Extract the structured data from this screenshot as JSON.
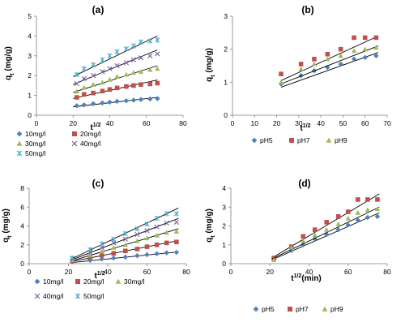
{
  "colors": {
    "blue": "#4F81BD",
    "red": "#C0504D",
    "green": "#9BBB59",
    "purple": "#8064A2",
    "cyan": "#4BACC6",
    "fit_line": "#000000"
  },
  "chart_data": [
    {
      "type": "scatter",
      "panel_label": "(a)",
      "ylabel": "q",
      "ylabel_sub": "t",
      "ylabel_unit": " (mg/g)",
      "xlabel": "t",
      "xlabel_sup": "1/2",
      "xlabel_unit": "",
      "xlim": [
        0,
        80
      ],
      "ylim": [
        0,
        5
      ],
      "xticks": [
        "0",
        "20",
        "40",
        "60",
        "80"
      ],
      "yticks": [
        "0",
        "1",
        "2",
        "3",
        "4",
        "5"
      ],
      "legend_layout": "two-column",
      "series": [
        {
          "name": "10mg/l",
          "marker": "diamond",
          "color": "blue",
          "x": [
            22,
            26,
            31,
            36,
            40,
            44,
            49,
            53,
            57,
            62,
            66
          ],
          "y": [
            0.48,
            0.52,
            0.58,
            0.62,
            0.66,
            0.7,
            0.73,
            0.76,
            0.79,
            0.82,
            0.84
          ],
          "fit": [
            [
              20,
              0.42
            ],
            [
              66,
              0.9
            ]
          ]
        },
        {
          "name": "20mg/l",
          "marker": "square",
          "color": "red",
          "x": [
            22,
            26,
            31,
            36,
            40,
            44,
            49,
            53,
            57,
            62,
            66
          ],
          "y": [
            0.9,
            1.05,
            1.12,
            1.22,
            1.3,
            1.38,
            1.45,
            1.5,
            1.55,
            1.58,
            1.62
          ],
          "fit": [
            [
              20,
              0.85
            ],
            [
              66,
              1.78
            ]
          ]
        },
        {
          "name": "30mg/l",
          "marker": "triangle",
          "color": "green",
          "x": [
            22,
            26,
            31,
            36,
            40,
            44,
            49,
            53,
            57,
            62,
            66
          ],
          "y": [
            1.2,
            1.4,
            1.55,
            1.65,
            1.8,
            1.95,
            2.05,
            2.15,
            2.2,
            2.3,
            2.35
          ],
          "fit": [
            [
              20,
              1.15
            ],
            [
              66,
              2.5
            ]
          ]
        },
        {
          "name": "40mg/l",
          "marker": "x",
          "color": "purple",
          "x": [
            22,
            26,
            31,
            36,
            40,
            44,
            49,
            53,
            57,
            62,
            66
          ],
          "y": [
            1.6,
            1.85,
            2.0,
            2.2,
            2.35,
            2.5,
            2.65,
            2.8,
            2.9,
            3.0,
            3.1
          ],
          "fit": [
            [
              20,
              1.55
            ],
            [
              66,
              3.3
            ]
          ]
        },
        {
          "name": "50mg/l",
          "marker": "asterisk",
          "color": "cyan",
          "x": [
            22,
            26,
            31,
            36,
            40,
            44,
            49,
            53,
            57,
            62,
            66
          ],
          "y": [
            2.05,
            2.35,
            2.55,
            2.8,
            3.0,
            3.2,
            3.35,
            3.5,
            3.7,
            3.75,
            3.8
          ],
          "fit": [
            [
              20,
              1.95
            ],
            [
              66,
              4.0
            ]
          ]
        }
      ]
    },
    {
      "type": "scatter",
      "panel_label": "(b)",
      "ylabel": "q",
      "ylabel_sub": "t",
      "ylabel_unit": " (mg/g)",
      "xlabel": "t",
      "xlabel_sup": "1/2",
      "xlabel_unit": "",
      "xlim": [
        0,
        70
      ],
      "ylim": [
        0,
        3
      ],
      "xticks": [
        "0",
        "10",
        "20",
        "30",
        "40",
        "50",
        "60",
        "70"
      ],
      "yticks": [
        "0",
        "1",
        "2",
        "3"
      ],
      "legend_layout": "single-row",
      "series": [
        {
          "name": "pH5",
          "marker": "diamond",
          "color": "blue",
          "x": [
            22,
            31,
            37,
            43,
            49,
            55,
            60,
            65
          ],
          "y": [
            0.95,
            1.2,
            1.35,
            1.45,
            1.55,
            1.7,
            1.75,
            1.8
          ],
          "fit": [
            [
              22,
              0.85
            ],
            [
              66,
              1.9
            ]
          ]
        },
        {
          "name": "pH7",
          "marker": "square",
          "color": "red",
          "x": [
            22,
            31,
            37,
            43,
            49,
            55,
            60,
            65
          ],
          "y": [
            1.25,
            1.55,
            1.7,
            1.85,
            2.0,
            2.35,
            2.35,
            2.35
          ],
          "fit": [
            [
              22,
              1.05
            ],
            [
              66,
              2.4
            ]
          ]
        },
        {
          "name": "pH9",
          "marker": "triangle",
          "color": "green",
          "x": [
            22,
            31,
            37,
            43,
            49,
            55,
            60,
            65
          ],
          "y": [
            1.0,
            1.4,
            1.55,
            1.7,
            1.8,
            1.95,
            2.0,
            2.05
          ],
          "fit": [
            [
              22,
              0.95
            ],
            [
              66,
              2.1
            ]
          ]
        }
      ]
    },
    {
      "type": "scatter",
      "panel_label": "(c)",
      "ylabel": "q",
      "ylabel_sub": "t",
      "ylabel_unit": " (mg/g)",
      "xlabel": "t",
      "xlabel_sup": "1/2",
      "xlabel_unit": "",
      "xlim": [
        0,
        80
      ],
      "ylim": [
        0,
        8
      ],
      "xticks": [
        "0",
        "20",
        "40",
        "60",
        "80"
      ],
      "yticks": [
        "0",
        "2",
        "4",
        "6",
        "8"
      ],
      "legend_layout": "three-two",
      "series": [
        {
          "name": "10mg/l",
          "marker": "diamond",
          "color": "blue",
          "x": [
            22,
            31,
            37,
            43,
            49,
            55,
            60,
            65,
            70,
            75
          ],
          "y": [
            0.2,
            0.35,
            0.5,
            0.6,
            0.7,
            0.85,
            0.95,
            1.05,
            1.15,
            1.2
          ],
          "fit": [
            [
              21,
              0.1
            ],
            [
              76,
              1.25
            ]
          ]
        },
        {
          "name": "20mg/l",
          "marker": "square",
          "color": "red",
          "x": [
            22,
            31,
            37,
            43,
            49,
            55,
            60,
            65,
            70,
            75
          ],
          "y": [
            0.3,
            0.65,
            0.9,
            1.1,
            1.35,
            1.55,
            1.8,
            2.0,
            2.2,
            2.3
          ],
          "fit": [
            [
              21,
              0.2
            ],
            [
              76,
              2.45
            ]
          ]
        },
        {
          "name": "30mg/l",
          "marker": "triangle",
          "color": "green",
          "x": [
            22,
            31,
            37,
            43,
            49,
            55,
            60,
            65,
            70,
            75
          ],
          "y": [
            0.4,
            0.9,
            1.3,
            1.7,
            2.0,
            2.4,
            2.7,
            3.0,
            3.3,
            3.4
          ],
          "fit": [
            [
              21,
              0.25
            ],
            [
              76,
              3.7
            ]
          ]
        },
        {
          "name": "40mg/l",
          "marker": "x",
          "color": "purple",
          "x": [
            22,
            31,
            37,
            43,
            49,
            55,
            60,
            65,
            70,
            75
          ],
          "y": [
            0.55,
            1.2,
            1.7,
            2.2,
            2.6,
            3.1,
            3.5,
            3.9,
            4.3,
            4.4
          ],
          "fit": [
            [
              21,
              0.35
            ],
            [
              76,
              4.8
            ]
          ]
        },
        {
          "name": "50mg/l",
          "marker": "asterisk",
          "color": "cyan",
          "x": [
            22,
            31,
            37,
            43,
            49,
            55,
            60,
            65,
            70,
            75
          ],
          "y": [
            0.6,
            1.5,
            2.1,
            2.6,
            3.2,
            3.7,
            4.2,
            4.8,
            5.3,
            5.3
          ],
          "fit": [
            [
              21,
              0.45
            ],
            [
              76,
              5.9
            ]
          ]
        }
      ]
    },
    {
      "type": "scatter",
      "panel_label": "(d)",
      "ylabel": "q",
      "ylabel_sub": "t",
      "ylabel_unit": " (mg/g)",
      "xlabel": "t",
      "xlabel_sup": "1/2",
      "xlabel_unit": "(min)",
      "xlim": [
        0,
        80
      ],
      "ylim": [
        0,
        4
      ],
      "xticks": [
        "0",
        "20",
        "40",
        "60",
        "80"
      ],
      "yticks": [
        "0",
        "1",
        "2",
        "3",
        "4"
      ],
      "legend_layout": "single-row",
      "series": [
        {
          "name": "pH5",
          "marker": "diamond",
          "color": "blue",
          "x": [
            22,
            31,
            37,
            43,
            49,
            55,
            60,
            65,
            70,
            75
          ],
          "y": [
            0.25,
            0.7,
            1.0,
            1.3,
            1.55,
            1.8,
            2.05,
            2.3,
            2.45,
            2.5
          ],
          "fit": [
            [
              21,
              0.2
            ],
            [
              76,
              2.7
            ]
          ]
        },
        {
          "name": "pH7",
          "marker": "square",
          "color": "red",
          "x": [
            22,
            31,
            37,
            43,
            49,
            55,
            60,
            65,
            70,
            75
          ],
          "y": [
            0.3,
            0.9,
            1.45,
            1.8,
            2.2,
            2.5,
            2.75,
            3.4,
            3.4,
            3.4
          ],
          "fit": [
            [
              21,
              0.3
            ],
            [
              76,
              3.7
            ]
          ]
        },
        {
          "name": "pH9",
          "marker": "triangle",
          "color": "green",
          "x": [
            22,
            31,
            37,
            43,
            49,
            55,
            60,
            65,
            70,
            75
          ],
          "y": [
            0.2,
            0.85,
            1.2,
            1.5,
            1.8,
            2.1,
            2.4,
            2.7,
            2.85,
            2.9
          ],
          "fit": [
            [
              21,
              0.25
            ],
            [
              76,
              3.0
            ]
          ]
        }
      ]
    }
  ]
}
